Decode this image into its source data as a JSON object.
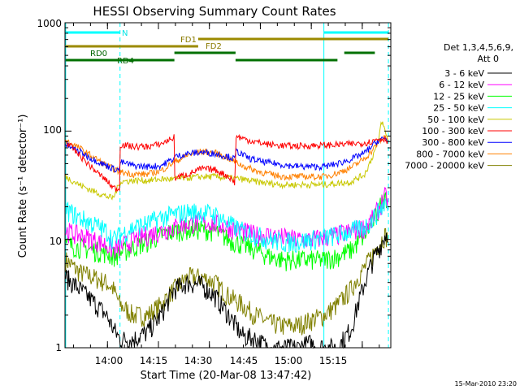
{
  "chart_data": {
    "type": "line",
    "title": "HESSI Observing Summary Count Rates",
    "xlabel": "Start Time (20-Mar-08 13:47:42)",
    "ylabel": "Count Rate (s⁻¹ detector⁻¹)",
    "yscale": "log",
    "ylim": [
      1,
      1000
    ],
    "xlim_minutes": [
      -0.2,
      95.7
    ],
    "ytick_labels": [
      "1",
      "10",
      "100",
      "1000"
    ],
    "xtick_labels": [
      "14:00",
      "14:15",
      "14:30",
      "14:45",
      "15:00",
      "15:15"
    ],
    "legend_title": "Det 1,3,4,5,6,9,",
    "legend_subtitle": "Att 0",
    "legend_placement": "right",
    "footer_timestamp": "15-Mar-2010 23:20",
    "flags": [
      {
        "label": "N",
        "color": "#00ffff",
        "segments": [
          [
            0,
            16
          ],
          [
            76,
            95
          ]
        ]
      },
      {
        "label": "FD1",
        "color": "#9b8a00",
        "segments": [
          [
            39,
            95
          ]
        ]
      },
      {
        "label": "FD2",
        "color": "#9b8a00",
        "segments": [
          [
            0,
            39
          ]
        ]
      },
      {
        "label": "RD0",
        "color": "#007000",
        "segments": [
          [
            32,
            50
          ],
          [
            82,
            91
          ]
        ]
      },
      {
        "label": "RD4",
        "color": "#007000",
        "segments": [
          [
            0,
            32
          ],
          [
            50,
            80
          ]
        ]
      }
    ],
    "vlines_solid": [
      0,
      76
    ],
    "vlines_dashed": [
      16,
      95
    ],
    "series": [
      {
        "name": "3 - 6 keV",
        "color": "#000000",
        "x": [
          0,
          4,
          8,
          12,
          14,
          16,
          20,
          24,
          28,
          32,
          36,
          40,
          44,
          48,
          52,
          56,
          60,
          64,
          68,
          72,
          76,
          80,
          84,
          86,
          88,
          90,
          92,
          94,
          95
        ],
        "y": [
          4.5,
          3.5,
          2.7,
          2.0,
          1.5,
          1.2,
          1.2,
          1.4,
          2.0,
          3.5,
          4.0,
          3.8,
          3.0,
          2.0,
          1.3,
          1.2,
          1.0,
          1.0,
          1.0,
          1.1,
          1.0,
          1.0,
          1.5,
          2.5,
          4.0,
          6.0,
          8.0,
          11,
          12
        ]
      },
      {
        "name": "6 - 12 keV",
        "color": "#ff00ff",
        "x": [
          0,
          4,
          8,
          12,
          14,
          16,
          20,
          24,
          28,
          32,
          36,
          40,
          44,
          48,
          52,
          56,
          60,
          64,
          68,
          72,
          76,
          80,
          84,
          88,
          90,
          92,
          94,
          95
        ],
        "y": [
          12,
          11,
          10,
          9,
          8,
          8.5,
          10,
          11,
          12,
          13,
          14,
          14.5,
          14,
          13,
          12,
          11,
          11,
          10.5,
          10,
          10,
          10.5,
          11,
          12,
          13,
          15,
          19,
          25,
          22
        ]
      },
      {
        "name": "12 - 25 keV",
        "color": "#00ff00",
        "x": [
          0,
          4,
          8,
          12,
          14,
          16,
          20,
          24,
          28,
          32,
          36,
          40,
          44,
          48,
          52,
          56,
          60,
          64,
          68,
          72,
          76,
          80,
          84,
          88,
          90,
          92,
          94,
          95
        ],
        "y": [
          9,
          8.5,
          8,
          7.5,
          7,
          7.5,
          8.5,
          9.5,
          11,
          12,
          12.5,
          12.5,
          12,
          10,
          9,
          8,
          7,
          6.5,
          6.5,
          6.5,
          6.5,
          7,
          8,
          11,
          14,
          18,
          27,
          22
        ]
      },
      {
        "name": "25 - 50 keV",
        "color": "#00ffff",
        "x": [
          0,
          4,
          8,
          12,
          14,
          16,
          20,
          24,
          28,
          32,
          36,
          40,
          44,
          48,
          52,
          56,
          60,
          64,
          68,
          72,
          76,
          80,
          84,
          88,
          90,
          92,
          94,
          95
        ],
        "y": [
          19,
          16,
          14,
          12,
          10,
          11,
          13,
          14,
          16,
          17,
          18,
          18,
          17,
          14,
          12,
          11,
          10,
          9.5,
          9.5,
          10,
          10.5,
          11,
          12,
          13,
          15,
          18,
          22,
          18
        ]
      },
      {
        "name": "50 - 100 keV",
        "color": "#c8c800",
        "x": [
          0,
          4,
          8,
          12,
          14,
          16,
          20,
          24,
          28,
          32,
          36,
          40,
          44,
          48,
          52,
          56,
          60,
          64,
          68,
          72,
          76,
          80,
          84,
          88,
          90,
          92,
          93,
          94,
          95
        ],
        "y": [
          38,
          32,
          28,
          25,
          24,
          34,
          35,
          35,
          36,
          36,
          37,
          38,
          38,
          37,
          36,
          34,
          33,
          32,
          32,
          32,
          32,
          33,
          34,
          40,
          55,
          80,
          125,
          100,
          80
        ]
      },
      {
        "name": "100 - 300 keV",
        "color": "#ff0000",
        "x": [
          0,
          4,
          8,
          12,
          14,
          15.9,
          16,
          20,
          24,
          28,
          32,
          32.1,
          36,
          40,
          44,
          48,
          49.9,
          50,
          54,
          58,
          62,
          66,
          70,
          74,
          76,
          80,
          84,
          88,
          90,
          92,
          94,
          95
        ],
        "y": [
          80,
          60,
          45,
          35,
          30,
          29,
          75,
          72,
          72,
          76,
          88,
          37,
          40,
          45,
          44,
          38,
          33,
          90,
          82,
          77,
          74,
          73,
          73,
          74,
          74,
          75,
          76,
          78,
          80,
          85,
          85,
          80
        ]
      },
      {
        "name": "300 - 800 keV",
        "color": "#0000ff",
        "x": [
          0,
          4,
          8,
          12,
          14,
          15.9,
          16,
          20,
          24,
          28,
          31.9,
          32,
          36,
          40,
          44,
          48,
          49.9,
          50,
          54,
          58,
          62,
          66,
          70,
          74,
          76,
          80,
          84,
          88,
          90,
          92,
          94,
          95
        ],
        "y": [
          75,
          65,
          55,
          48,
          45,
          44,
          52,
          48,
          47,
          48,
          56,
          58,
          62,
          64,
          62,
          58,
          55,
          66,
          56,
          52,
          50,
          48,
          47,
          47,
          47,
          50,
          55,
          63,
          72,
          82,
          85,
          80
        ]
      },
      {
        "name": "800 - 7000 keV",
        "color": "#ff8000",
        "x": [
          0,
          4,
          8,
          12,
          16,
          20,
          24,
          28,
          32,
          36,
          40,
          44,
          48,
          52,
          56,
          60,
          64,
          68,
          72,
          76,
          80,
          84,
          88,
          90,
          92,
          94,
          95
        ],
        "y": [
          82,
          70,
          58,
          48,
          42,
          40,
          40,
          43,
          52,
          60,
          65,
          63,
          56,
          48,
          43,
          40,
          38,
          38,
          38,
          38,
          41,
          46,
          56,
          65,
          78,
          90,
          85
        ]
      },
      {
        "name": "7000 - 20000 keV",
        "color": "#808000",
        "x": [
          0,
          4,
          8,
          12,
          14,
          16,
          20,
          24,
          28,
          32,
          36,
          40,
          44,
          48,
          52,
          56,
          60,
          64,
          68,
          72,
          76,
          80,
          84,
          86,
          88,
          90,
          92,
          94,
          95
        ],
        "y": [
          6.5,
          5,
          4.5,
          4,
          3.5,
          2.5,
          2,
          2,
          2.5,
          3.5,
          4.5,
          4.5,
          4,
          3,
          2.5,
          2,
          1.7,
          1.6,
          1.6,
          1.8,
          2,
          2.5,
          3.5,
          4.5,
          5.5,
          7,
          9,
          11,
          10
        ]
      }
    ]
  }
}
